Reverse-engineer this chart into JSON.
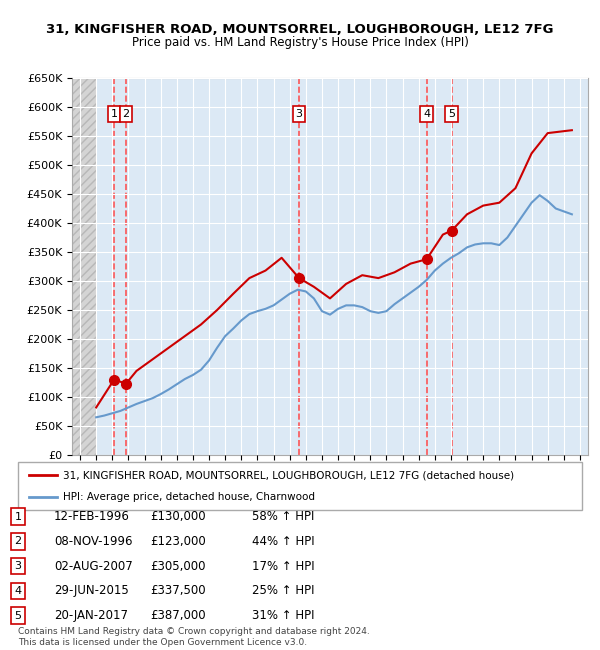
{
  "title_line1": "31, KINGFISHER ROAD, MOUNTSORREL, LOUGHBOROUGH, LE12 7FG",
  "title_line2": "Price paid vs. HM Land Registry's House Price Index (HPI)",
  "ylabel": "",
  "xlabel": "",
  "ylim": [
    0,
    650000
  ],
  "yticks": [
    0,
    50000,
    100000,
    150000,
    200000,
    250000,
    300000,
    350000,
    400000,
    450000,
    500000,
    550000,
    600000,
    650000
  ],
  "ytick_labels": [
    "£0",
    "£50K",
    "£100K",
    "£150K",
    "£200K",
    "£250K",
    "£300K",
    "£350K",
    "£400K",
    "£450K",
    "£500K",
    "£550K",
    "£600K",
    "£650K"
  ],
  "xlim_start": 1993.5,
  "xlim_end": 2025.5,
  "background_color": "#ffffff",
  "plot_bg_color": "#dce9f5",
  "hatch_bg_color": "#e8e8e8",
  "hatch_start": 1993.5,
  "hatch_end": 1995.0,
  "purchases": [
    {
      "label": "1",
      "date": 1996.11,
      "price": 130000,
      "date_str": "12-FEB-1996",
      "price_str": "£130,000",
      "hpi_str": "58% ↑ HPI"
    },
    {
      "label": "2",
      "date": 1996.85,
      "price": 123000,
      "date_str": "08-NOV-1996",
      "price_str": "£123,000",
      "hpi_str": "44% ↑ HPI"
    },
    {
      "label": "3",
      "date": 2007.58,
      "price": 305000,
      "date_str": "02-AUG-2007",
      "price_str": "£305,000",
      "hpi_str": "17% ↑ HPI"
    },
    {
      "label": "4",
      "date": 2015.49,
      "price": 337500,
      "date_str": "29-JUN-2015",
      "price_str": "£337,500",
      "hpi_str": "25% ↑ HPI"
    },
    {
      "label": "5",
      "date": 2017.05,
      "price": 387000,
      "date_str": "20-JAN-2017",
      "price_str": "£387,000",
      "hpi_str": "31% ↑ HPI"
    }
  ],
  "red_line_color": "#cc0000",
  "blue_line_color": "#6699cc",
  "dot_color": "#cc0000",
  "vline_color": "#ff4444",
  "legend_label_red": "31, KINGFISHER ROAD, MOUNTSORREL, LOUGHBOROUGH, LE12 7FG (detached house)",
  "legend_label_blue": "HPI: Average price, detached house, Charnwood",
  "footer_text": "Contains HM Land Registry data © Crown copyright and database right 2024.\nThis data is licensed under the Open Government Licence v3.0.",
  "hpi_data_x": [
    1995.0,
    1995.5,
    1996.0,
    1996.5,
    1997.0,
    1997.5,
    1998.0,
    1998.5,
    1999.0,
    1999.5,
    2000.0,
    2000.5,
    2001.0,
    2001.5,
    2002.0,
    2002.5,
    2003.0,
    2003.5,
    2004.0,
    2004.5,
    2005.0,
    2005.5,
    2006.0,
    2006.5,
    2007.0,
    2007.5,
    2008.0,
    2008.5,
    2009.0,
    2009.5,
    2010.0,
    2010.5,
    2011.0,
    2011.5,
    2012.0,
    2012.5,
    2013.0,
    2013.5,
    2014.0,
    2014.5,
    2015.0,
    2015.5,
    2016.0,
    2016.5,
    2017.0,
    2017.5,
    2018.0,
    2018.5,
    2019.0,
    2019.5,
    2020.0,
    2020.5,
    2021.0,
    2021.5,
    2022.0,
    2022.5,
    2023.0,
    2023.5,
    2024.0,
    2024.5
  ],
  "hpi_data_y": [
    65000,
    68000,
    72000,
    76000,
    82000,
    88000,
    93000,
    98000,
    105000,
    113000,
    122000,
    131000,
    138000,
    147000,
    163000,
    185000,
    205000,
    218000,
    232000,
    243000,
    248000,
    252000,
    258000,
    268000,
    278000,
    285000,
    282000,
    270000,
    248000,
    242000,
    252000,
    258000,
    258000,
    255000,
    248000,
    245000,
    248000,
    260000,
    270000,
    280000,
    290000,
    302000,
    318000,
    330000,
    340000,
    348000,
    358000,
    363000,
    365000,
    365000,
    362000,
    375000,
    395000,
    415000,
    435000,
    448000,
    438000,
    425000,
    420000,
    415000
  ],
  "price_paid_x": [
    1995.0,
    1996.11,
    1996.85,
    1997.5,
    1998.5,
    1999.5,
    2000.5,
    2001.5,
    2002.5,
    2003.5,
    2004.5,
    2005.5,
    2006.5,
    2007.58,
    2008.5,
    2009.5,
    2010.5,
    2011.5,
    2012.5,
    2013.5,
    2014.5,
    2015.49,
    2016.5,
    2017.05,
    2018.0,
    2019.0,
    2020.0,
    2021.0,
    2022.0,
    2023.0,
    2024.5
  ],
  "price_paid_y": [
    82000,
    130000,
    123000,
    145000,
    165000,
    185000,
    205000,
    225000,
    250000,
    278000,
    305000,
    318000,
    340000,
    305000,
    290000,
    270000,
    295000,
    310000,
    305000,
    315000,
    330000,
    337500,
    380000,
    387000,
    415000,
    430000,
    435000,
    460000,
    520000,
    555000,
    560000
  ]
}
